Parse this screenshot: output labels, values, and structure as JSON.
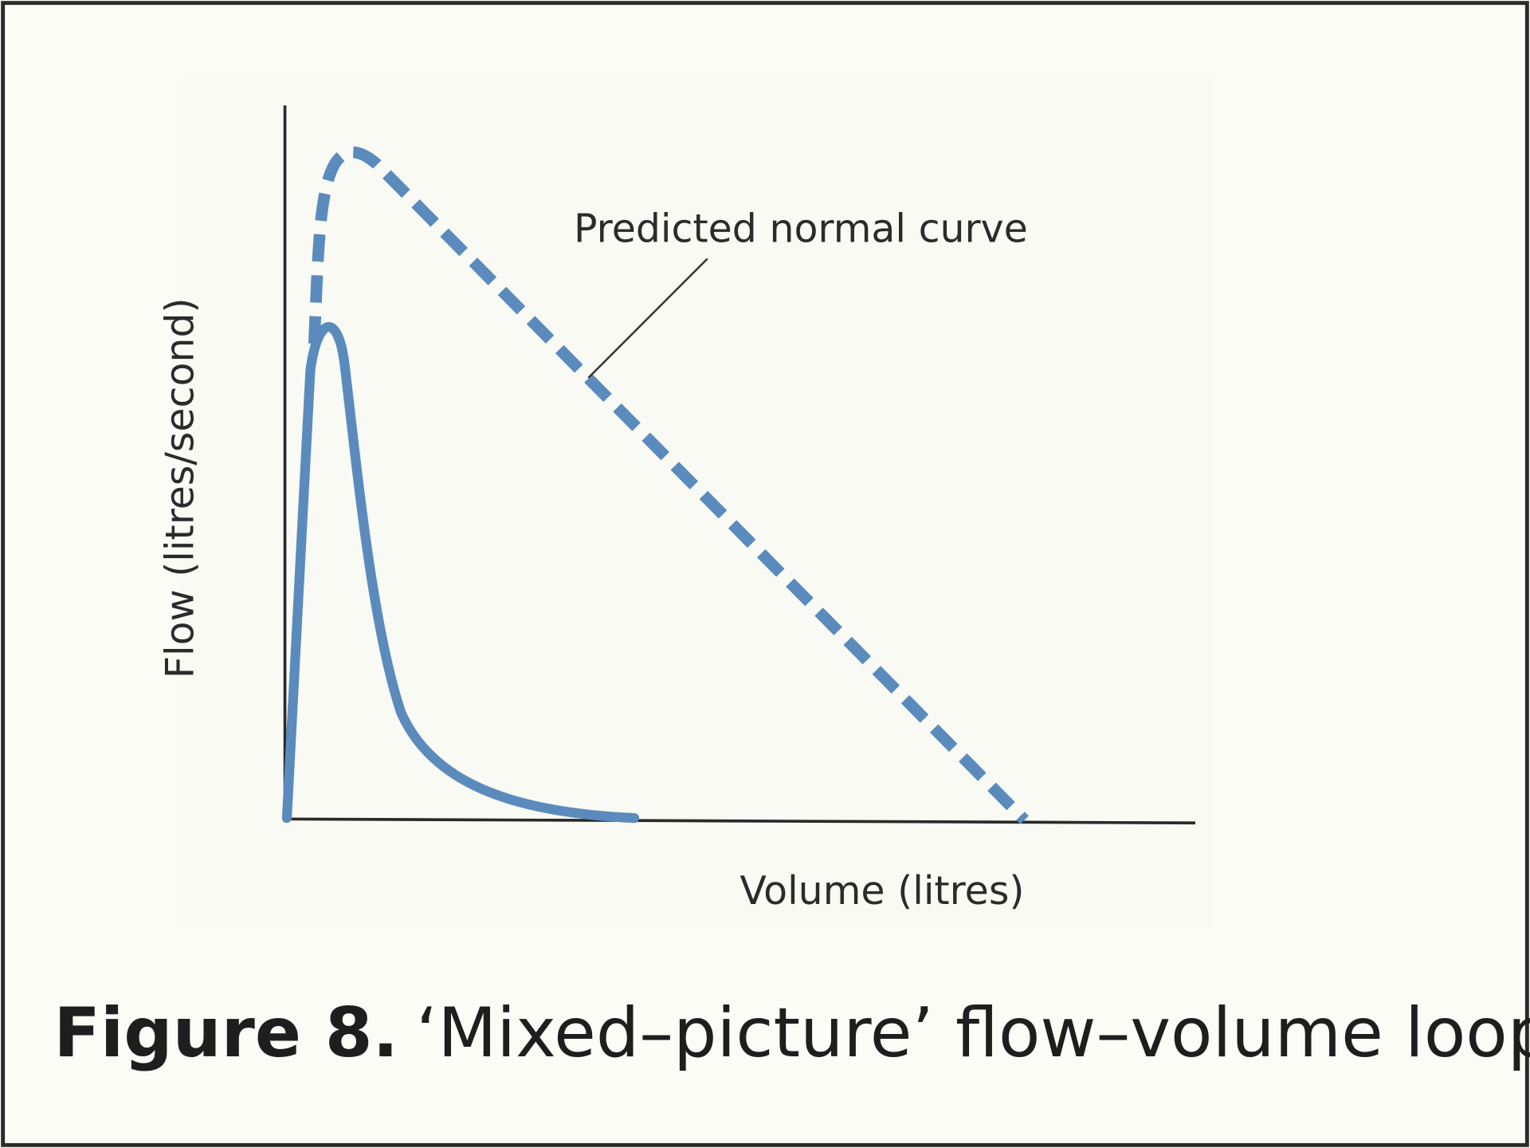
{
  "figure": {
    "annotation": "Predicted normal curve",
    "y_axis_label": "Flow (litres/second)",
    "x_axis_label": "Volume (litres)",
    "caption_label": "Figure 8.",
    "caption_text": "‘Mixed–picture’ flow–volume loop"
  }
}
